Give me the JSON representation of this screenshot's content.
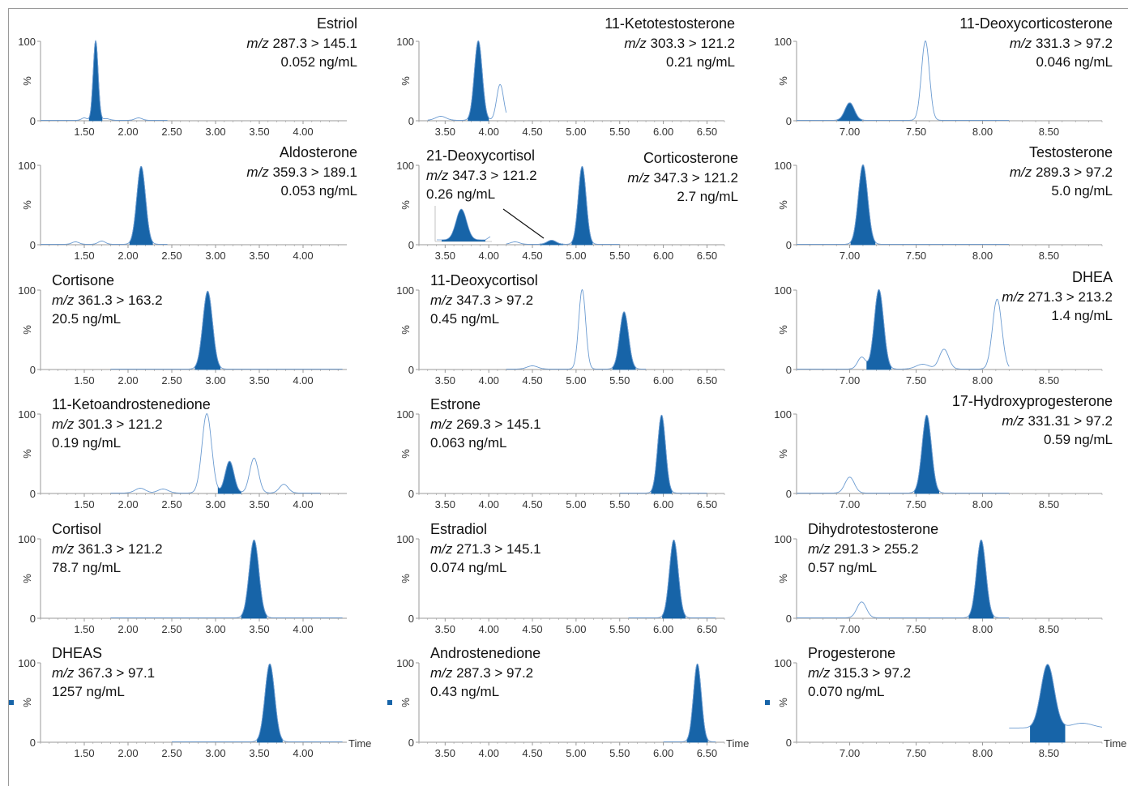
{
  "time_label": "Time",
  "colors": {
    "peak_fill": "#1764a8",
    "trace": "#6b9bd1",
    "axis": "#9a9a9a",
    "text": "#111111",
    "tick_text": "#333333"
  },
  "chart_data": [
    {
      "type": "line",
      "title": "Estriol",
      "mz": "287.3 > 145.1",
      "conc": "0.052 ng/mL",
      "xlim": [
        1.0,
        4.5
      ],
      "ylim": [
        0,
        100
      ],
      "yticks": [
        0,
        100
      ],
      "ylabel": "%",
      "xticks": [
        "1.50",
        "2.00",
        "2.50",
        "3.00",
        "3.50",
        "4.00"
      ],
      "trace_x": [
        1.0,
        2.45
      ],
      "peaks": [
        {
          "rt": 1.63,
          "height": 100,
          "width": 0.028,
          "filled": true
        },
        {
          "rt": 1.5,
          "height": 3,
          "width": 0.03
        },
        {
          "rt": 1.75,
          "height": 2,
          "width": 0.04
        },
        {
          "rt": 2.12,
          "height": 3,
          "width": 0.04
        }
      ]
    },
    {
      "type": "line",
      "title": "11-Ketotestosterone",
      "mz": "303.3 > 121.2",
      "conc": "0.21 ng/mL",
      "xlim": [
        3.2,
        6.7
      ],
      "ylim": [
        0,
        100
      ],
      "yticks": [
        0,
        100
      ],
      "ylabel": "%",
      "xticks": [
        "3.50",
        "4.00",
        "4.50",
        "5.00",
        "5.50",
        "6.00",
        "6.50"
      ],
      "trace_x": [
        3.3,
        4.2
      ],
      "peaks": [
        {
          "rt": 3.88,
          "height": 100,
          "width": 0.045,
          "filled": true
        },
        {
          "rt": 4.13,
          "height": 45,
          "width": 0.04
        },
        {
          "rt": 3.45,
          "height": 5,
          "width": 0.06
        }
      ]
    },
    {
      "type": "line",
      "title": "11-Deoxycorticosterone",
      "mz": "331.3 > 97.2",
      "conc": "0.046 ng/mL",
      "xlim": [
        6.6,
        8.9
      ],
      "ylim": [
        0,
        100
      ],
      "yticks": [
        0,
        100
      ],
      "ylabel": "%",
      "xticks": [
        "7.00",
        "7.50",
        "8.00",
        "8.50"
      ],
      "trace_x": [
        6.6,
        8.2
      ],
      "peaks": [
        {
          "rt": 7.0,
          "height": 22,
          "width": 0.035,
          "filled": true
        },
        {
          "rt": 7.57,
          "height": 100,
          "width": 0.03
        }
      ]
    },
    {
      "type": "line",
      "title": "Aldosterone",
      "mz": "359.3 > 189.1",
      "conc": "0.053 ng/mL",
      "xlim": [
        1.0,
        4.5
      ],
      "ylim": [
        0,
        100
      ],
      "yticks": [
        0,
        100
      ],
      "ylabel": "%",
      "xticks": [
        "1.50",
        "2.00",
        "2.50",
        "3.00",
        "3.50",
        "4.00"
      ],
      "trace_x": [
        1.0,
        2.45
      ],
      "peaks": [
        {
          "rt": 2.15,
          "height": 98,
          "width": 0.05,
          "filled": true
        },
        {
          "rt": 1.4,
          "height": 3,
          "width": 0.04
        },
        {
          "rt": 1.7,
          "height": 4,
          "width": 0.04
        }
      ]
    },
    {
      "type": "line",
      "title": "21-Deoxycortisol",
      "title2": "Corticosterone",
      "mz": "347.3 > 121.2",
      "mz2": "347.3 > 121.2",
      "conc": "0.26 ng/mL",
      "conc2": "2.7 ng/mL",
      "xlim": [
        3.2,
        6.7
      ],
      "ylim": [
        0,
        100
      ],
      "yticks": [
        0,
        100
      ],
      "ylabel": "%",
      "xticks": [
        "3.50",
        "4.00",
        "4.50",
        "5.00",
        "5.50",
        "6.00",
        "6.50"
      ],
      "trace_x": [
        4.2,
        5.5
      ],
      "inset": true,
      "peaks": [
        {
          "rt": 5.07,
          "height": 98,
          "width": 0.045,
          "filled": true
        },
        {
          "rt": 4.72,
          "height": 5,
          "width": 0.05,
          "filled": true
        },
        {
          "rt": 4.3,
          "height": 3,
          "width": 0.05
        }
      ]
    },
    {
      "type": "line",
      "title": "Testosterone",
      "mz": "289.3 > 97.2",
      "conc": "5.0 ng/mL",
      "xlim": [
        6.6,
        8.9
      ],
      "ylim": [
        0,
        100
      ],
      "yticks": [
        0,
        100
      ],
      "ylabel": "%",
      "xticks": [
        "7.00",
        "7.50",
        "8.00",
        "8.50"
      ],
      "trace_x": [
        6.6,
        8.2
      ],
      "peaks": [
        {
          "rt": 7.1,
          "height": 100,
          "width": 0.035,
          "filled": true
        }
      ]
    },
    {
      "type": "line",
      "title": "Cortisone",
      "mz": "361.3 > 163.2",
      "conc": "20.5 ng/mL",
      "xlim": [
        1.0,
        4.5
      ],
      "ylim": [
        0,
        100
      ],
      "yticks": [
        0,
        100
      ],
      "ylabel": "%",
      "xticks": [
        "1.50",
        "2.00",
        "2.50",
        "3.00",
        "3.50",
        "4.00"
      ],
      "trace_x": [
        1.8,
        4.45
      ],
      "peaks": [
        {
          "rt": 2.91,
          "height": 98,
          "width": 0.055,
          "filled": true
        }
      ]
    },
    {
      "type": "line",
      "title": "11-Deoxycortisol",
      "mz": "347.3 > 97.2",
      "conc": "0.45 ng/mL",
      "xlim": [
        3.2,
        6.7
      ],
      "ylim": [
        0,
        100
      ],
      "yticks": [
        0,
        100
      ],
      "ylabel": "%",
      "xticks": [
        "3.50",
        "4.00",
        "4.50",
        "5.00",
        "5.50",
        "6.00",
        "6.50"
      ],
      "trace_x": [
        4.2,
        5.8
      ],
      "peaks": [
        {
          "rt": 5.55,
          "height": 72,
          "width": 0.05,
          "filled": true
        },
        {
          "rt": 5.07,
          "height": 100,
          "width": 0.04
        },
        {
          "rt": 4.5,
          "height": 4,
          "width": 0.06
        }
      ]
    },
    {
      "type": "line",
      "title": "DHEA",
      "mz": "271.3 > 213.2",
      "conc": "1.4 ng/mL",
      "xlim": [
        6.6,
        8.9
      ],
      "ylim": [
        0,
        100
      ],
      "yticks": [
        0,
        100
      ],
      "ylabel": "%",
      "xticks": [
        "7.00",
        "7.50",
        "8.00",
        "8.50"
      ],
      "trace_x": [
        6.6,
        8.2
      ],
      "peaks": [
        {
          "rt": 7.22,
          "height": 100,
          "width": 0.035,
          "filled": true
        },
        {
          "rt": 7.09,
          "height": 15,
          "width": 0.03
        },
        {
          "rt": 7.71,
          "height": 25,
          "width": 0.035
        },
        {
          "rt": 8.11,
          "height": 88,
          "width": 0.035
        },
        {
          "rt": 7.55,
          "height": 6,
          "width": 0.05
        }
      ]
    },
    {
      "type": "line",
      "title": "11-Ketoandrostenedione",
      "mz": "301.3 > 121.2",
      "conc": "0.19 ng/mL",
      "xlim": [
        1.0,
        4.5
      ],
      "ylim": [
        0,
        100
      ],
      "yticks": [
        0,
        100
      ],
      "ylabel": "%",
      "xticks": [
        "1.50",
        "2.00",
        "2.50",
        "3.00",
        "3.50",
        "4.00"
      ],
      "trace_x": [
        1.8,
        4.2
      ],
      "peaks": [
        {
          "rt": 3.16,
          "height": 40,
          "width": 0.05,
          "filled": true
        },
        {
          "rt": 2.9,
          "height": 100,
          "width": 0.055
        },
        {
          "rt": 3.44,
          "height": 44,
          "width": 0.05
        },
        {
          "rt": 3.78,
          "height": 11,
          "width": 0.05
        },
        {
          "rt": 2.14,
          "height": 6,
          "width": 0.06
        },
        {
          "rt": 2.4,
          "height": 5,
          "width": 0.06
        }
      ]
    },
    {
      "type": "line",
      "title": "Estrone",
      "mz": "269.3 > 145.1",
      "conc": "0.063 ng/mL",
      "xlim": [
        3.2,
        6.7
      ],
      "ylim": [
        0,
        100
      ],
      "yticks": [
        0,
        100
      ],
      "ylabel": "%",
      "xticks": [
        "3.50",
        "4.00",
        "4.50",
        "5.00",
        "5.50",
        "6.00",
        "6.50"
      ],
      "trace_x": [
        5.5,
        6.5
      ],
      "peaks": [
        {
          "rt": 5.98,
          "height": 98,
          "width": 0.045,
          "filled": true
        }
      ]
    },
    {
      "type": "line",
      "title": "17-Hydroxyprogesterone",
      "mz": "331.31 > 97.2",
      "conc": "0.59 ng/mL",
      "xlim": [
        6.6,
        8.9
      ],
      "ylim": [
        0,
        100
      ],
      "yticks": [
        0,
        100
      ],
      "ylabel": "%",
      "xticks": [
        "7.00",
        "7.50",
        "8.00",
        "8.50"
      ],
      "trace_x": [
        6.6,
        8.2
      ],
      "peaks": [
        {
          "rt": 7.58,
          "height": 98,
          "width": 0.035,
          "filled": true
        },
        {
          "rt": 7.0,
          "height": 20,
          "width": 0.035
        }
      ]
    },
    {
      "type": "line",
      "title": "Cortisol",
      "mz": "361.3 > 121.2",
      "conc": "78.7 ng/mL",
      "xlim": [
        1.0,
        4.5
      ],
      "ylim": [
        0,
        100
      ],
      "yticks": [
        0,
        100
      ],
      "ylabel": "%",
      "xticks": [
        "1.50",
        "2.00",
        "2.50",
        "3.00",
        "3.50",
        "4.00"
      ],
      "trace_x": [
        1.8,
        4.45
      ],
      "peaks": [
        {
          "rt": 3.44,
          "height": 98,
          "width": 0.055,
          "filled": true
        }
      ]
    },
    {
      "type": "line",
      "title": "Estradiol",
      "mz": "271.3 > 145.1",
      "conc": "0.074 ng/mL",
      "xlim": [
        3.2,
        6.7
      ],
      "ylim": [
        0,
        100
      ],
      "yticks": [
        0,
        100
      ],
      "ylabel": "%",
      "xticks": [
        "3.50",
        "4.00",
        "4.50",
        "5.00",
        "5.50",
        "6.00",
        "6.50"
      ],
      "trace_x": [
        5.6,
        6.6
      ],
      "peaks": [
        {
          "rt": 6.12,
          "height": 98,
          "width": 0.05,
          "filled": true
        }
      ]
    },
    {
      "type": "line",
      "title": "Dihydrotestosterone",
      "mz": "291.3 > 255.2",
      "conc": "0.57 ng/mL",
      "xlim": [
        6.6,
        8.9
      ],
      "ylim": [
        0,
        100
      ],
      "yticks": [
        0,
        100
      ],
      "ylabel": "%",
      "xticks": [
        "7.00",
        "7.50",
        "8.00",
        "8.50"
      ],
      "trace_x": [
        6.6,
        8.2
      ],
      "peaks": [
        {
          "rt": 7.99,
          "height": 98,
          "width": 0.035,
          "filled": true
        },
        {
          "rt": 7.09,
          "height": 20,
          "width": 0.035
        }
      ]
    },
    {
      "type": "line",
      "title": "DHEAS",
      "mz": "367.3 > 97.1",
      "conc": "1257 ng/mL",
      "xlim": [
        1.0,
        4.5
      ],
      "ylim": [
        0,
        100
      ],
      "yticks": [
        0,
        100
      ],
      "ylabel": "%",
      "xticks": [
        "1.50",
        "2.00",
        "2.50",
        "3.00",
        "3.50",
        "4.00"
      ],
      "trace_x": [
        2.5,
        4.45
      ],
      "time_axis": true,
      "peaks": [
        {
          "rt": 3.62,
          "height": 98,
          "width": 0.055,
          "filled": true
        }
      ]
    },
    {
      "type": "line",
      "title": "Androstenedione",
      "mz": "287.3 > 97.2",
      "conc": "0.43 ng/mL",
      "xlim": [
        3.2,
        6.7
      ],
      "ylim": [
        0,
        100
      ],
      "yticks": [
        0,
        100
      ],
      "ylabel": "%",
      "xticks": [
        "3.50",
        "4.00",
        "4.50",
        "5.00",
        "5.50",
        "6.00",
        "6.50"
      ],
      "trace_x": [
        6.0,
        6.6
      ],
      "time_axis": true,
      "peaks": [
        {
          "rt": 6.39,
          "height": 98,
          "width": 0.045,
          "filled": true
        }
      ]
    },
    {
      "type": "line",
      "title": "Progesterone",
      "mz": "315.3 > 97.2",
      "conc": "0.070 ng/mL",
      "xlim": [
        6.6,
        8.9
      ],
      "ylim": [
        0,
        100
      ],
      "yticks": [
        0,
        100
      ],
      "ylabel": "%",
      "xticks": [
        "7.00",
        "7.50",
        "8.00",
        "8.50"
      ],
      "trace_x": [
        8.2,
        8.9
      ],
      "baseline": 18,
      "time_axis": true,
      "peaks": [
        {
          "rt": 8.49,
          "height": 80,
          "width": 0.05,
          "filled": true
        },
        {
          "rt": 8.75,
          "height": 6,
          "width": 0.08
        }
      ]
    }
  ]
}
